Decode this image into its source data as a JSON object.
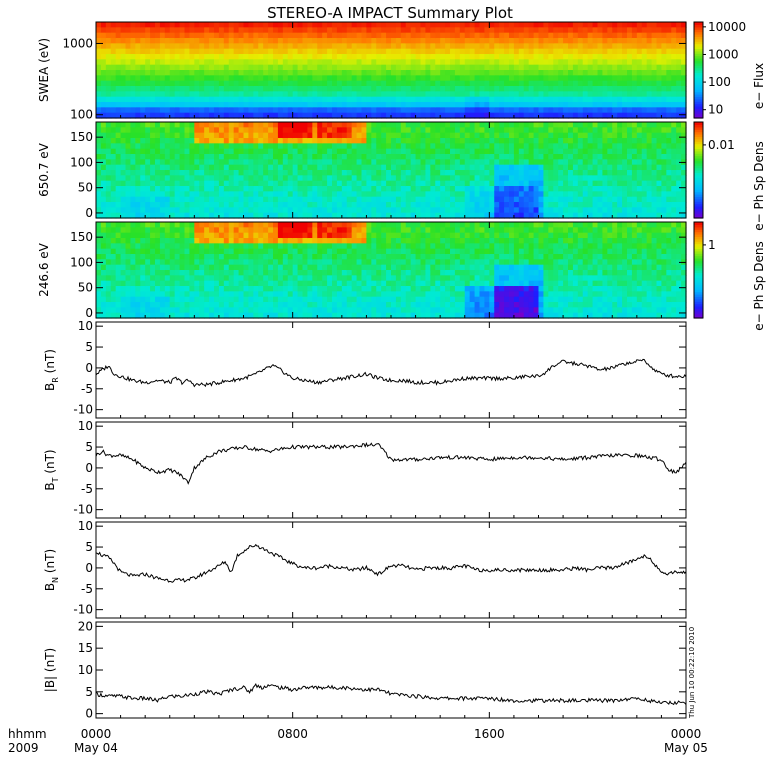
{
  "title": "STEREO-A IMPACT Summary Plot",
  "timestamp": "Thu Jun 10 00:22:10 2010",
  "time_axis": {
    "row1_label": "hhmm",
    "row2_label": "2009",
    "ticks": [
      {
        "t": 0,
        "label": "0000",
        "sub": "May 04"
      },
      {
        "t": 8,
        "label": "0800",
        "sub": ""
      },
      {
        "t": 16,
        "label": "1600",
        "sub": ""
      },
      {
        "t": 24,
        "label": "0000",
        "sub": "May 05"
      }
    ],
    "range_hours": [
      0,
      24
    ]
  },
  "chart_data": [
    {
      "type": "heatmap",
      "id": "swea",
      "ylabel": "SWEA (eV)",
      "yscale": "log",
      "ylim": [
        90,
        2000
      ],
      "yticks": [
        {
          "v": 100,
          "label": "100"
        },
        {
          "v": 1000,
          "label": "1000"
        }
      ],
      "colorbar": {
        "label": "e− Flux",
        "scale": "log",
        "range": [
          5,
          15000
        ],
        "ticks": [
          {
            "v": 10,
            "label": "10"
          },
          {
            "v": 100,
            "label": "100"
          },
          {
            "v": 1000,
            "label": "1000"
          },
          {
            "v": 10000,
            "label": "10000"
          }
        ]
      }
    },
    {
      "type": "heatmap",
      "id": "pad650",
      "ylabel": "650.7 eV",
      "ylim": [
        -10,
        180
      ],
      "yticks": [
        {
          "v": 0,
          "label": "0"
        },
        {
          "v": 50,
          "label": "50"
        },
        {
          "v": 100,
          "label": "100"
        },
        {
          "v": 150,
          "label": "150"
        }
      ],
      "colorbar": {
        "label": "e− Ph Sp Dens",
        "scale": "log",
        "range": [
          0.0003,
          0.03
        ],
        "ticks": [
          {
            "v": 0.01,
            "label": "0.01"
          }
        ]
      }
    },
    {
      "type": "heatmap",
      "id": "pad246",
      "ylabel": "246.6 eV",
      "ylim": [
        -10,
        180
      ],
      "yticks": [
        {
          "v": 0,
          "label": "0"
        },
        {
          "v": 50,
          "label": "50"
        },
        {
          "v": 100,
          "label": "100"
        },
        {
          "v": 150,
          "label": "150"
        }
      ],
      "colorbar": {
        "label": "e− Ph Sp Dens",
        "scale": "log",
        "range": [
          0.03,
          3
        ],
        "ticks": [
          {
            "v": 1,
            "label": "1"
          }
        ]
      }
    },
    {
      "type": "line",
      "id": "br",
      "ylabel_main": "B",
      "ylabel_sub": "R",
      "ylabel_unit": " (nT)",
      "ylim": [
        -12,
        11
      ],
      "yticks": [
        -10,
        -5,
        0,
        5,
        10
      ],
      "x": [
        0,
        0.25,
        0.5,
        0.75,
        1,
        1.5,
        2,
        2.5,
        3,
        3.25,
        3.5,
        3.75,
        4,
        4.5,
        5,
        5.5,
        6,
        6.5,
        7,
        7.2,
        7.5,
        7.75,
        8,
        8.5,
        9,
        9.5,
        10,
        10.5,
        11,
        11.5,
        12,
        12.5,
        13,
        13.5,
        14,
        14.5,
        15,
        15.5,
        16,
        16.5,
        17,
        17.5,
        18,
        18.3,
        18.6,
        19,
        19.5,
        20,
        20.5,
        21,
        21.5,
        22,
        22.3,
        22.6,
        23,
        23.5,
        24
      ],
      "y": [
        -1.5,
        -0.5,
        0.5,
        -1.5,
        -2,
        -3,
        -3.5,
        -3,
        -3.5,
        -2.5,
        -3.5,
        -3,
        -4,
        -4,
        -3.5,
        -3,
        -2.5,
        -1.5,
        0,
        0.5,
        -0.5,
        -1.5,
        -2.5,
        -3,
        -3.5,
        -3,
        -2.5,
        -2,
        -1.5,
        -2.5,
        -3,
        -3,
        -3.5,
        -3.5,
        -3.5,
        -3,
        -2.5,
        -2.5,
        -2.5,
        -2.5,
        -2.5,
        -2,
        -2,
        -1,
        0.5,
        1.5,
        1,
        0.5,
        -0.5,
        0,
        1,
        1.5,
        2,
        0,
        -1.5,
        -2,
        -2
      ]
    },
    {
      "type": "line",
      "id": "bt",
      "ylabel_main": "B",
      "ylabel_sub": "T",
      "ylabel_unit": " (nT)",
      "ylim": [
        -12,
        11
      ],
      "yticks": [
        -10,
        -5,
        0,
        5,
        10
      ],
      "x": [
        0,
        0.25,
        0.5,
        1,
        1.5,
        2,
        2.5,
        3,
        3.25,
        3.5,
        3.75,
        4,
        4.5,
        5,
        5.5,
        6,
        6.5,
        7,
        8,
        9,
        10,
        11,
        11.5,
        12,
        12.5,
        13,
        14,
        15,
        16,
        17,
        18,
        19,
        20,
        21,
        22,
        22.5,
        23,
        23.3,
        23.6,
        24
      ],
      "y": [
        3,
        4,
        3,
        3,
        2,
        0,
        -1,
        -0.5,
        -1,
        -2,
        -3.5,
        0,
        2.5,
        4,
        4.5,
        5,
        4.5,
        4,
        5,
        5,
        5,
        5.5,
        5.5,
        2,
        2,
        2,
        2.5,
        2.5,
        2,
        2.5,
        2.5,
        2,
        2.5,
        3,
        3,
        2.5,
        2,
        -0.5,
        -1,
        1
      ]
    },
    {
      "type": "line",
      "id": "bn",
      "ylabel_main": "B",
      "ylabel_sub": "N",
      "ylabel_unit": " (nT)",
      "ylim": [
        -12,
        11
      ],
      "yticks": [
        -10,
        -5,
        0,
        5,
        10
      ],
      "x": [
        0,
        0.25,
        0.5,
        0.75,
        1,
        1.5,
        2,
        2.5,
        3,
        3.5,
        4,
        4.5,
        5,
        5.25,
        5.5,
        5.75,
        6,
        6.25,
        6.5,
        7,
        7.5,
        8,
        8.5,
        9,
        9.5,
        10,
        10.5,
        11,
        11.5,
        12,
        12.5,
        13,
        13.5,
        14,
        14.5,
        15,
        15.5,
        16,
        16.5,
        17,
        17.5,
        18,
        18.5,
        19,
        19.5,
        20,
        20.5,
        21,
        21.5,
        22,
        22.3,
        22.6,
        23,
        23.5,
        24
      ],
      "y": [
        4,
        3,
        2.5,
        1,
        -1,
        -2,
        -1.5,
        -2.5,
        -3,
        -3,
        -2.5,
        -1,
        0.5,
        1.5,
        -1,
        3,
        4,
        5,
        5.5,
        4,
        2.5,
        1,
        0,
        0,
        0.5,
        0,
        -0.5,
        0,
        -1.5,
        0.5,
        0.5,
        -0.5,
        0,
        0,
        0,
        0.5,
        -0.5,
        -0.5,
        -0.5,
        -0.5,
        -0.5,
        -0.5,
        -0.5,
        -0.5,
        0,
        -0.5,
        0,
        0,
        1,
        2,
        3,
        2,
        -1.5,
        -1,
        -1
      ]
    },
    {
      "type": "line",
      "id": "bmag",
      "ylabel_main": "|B| (nT)",
      "ylim": [
        -1,
        21
      ],
      "yticks": [
        0,
        5,
        10,
        15,
        20
      ],
      "x": [
        0,
        0.5,
        1,
        1.5,
        2,
        2.5,
        3,
        3.5,
        4,
        4.5,
        5,
        5.5,
        6,
        6.25,
        6.5,
        6.75,
        7,
        7.5,
        8,
        8.5,
        9,
        10,
        11,
        11.5,
        12,
        13,
        14,
        15,
        16,
        17,
        18,
        19,
        20,
        21,
        22,
        22.5,
        23,
        23.5,
        24
      ],
      "y": [
        4.5,
        4,
        4,
        3.5,
        3.5,
        3,
        4,
        4,
        4.5,
        5,
        4.5,
        5.5,
        6,
        5,
        6.5,
        6,
        6.5,
        6,
        5.5,
        6,
        6,
        6,
        5.5,
        5.5,
        4.5,
        4,
        3.5,
        3.5,
        3.5,
        3,
        3,
        3,
        3,
        3,
        3.5,
        3,
        2.5,
        2.5,
        2.5
      ]
    }
  ]
}
